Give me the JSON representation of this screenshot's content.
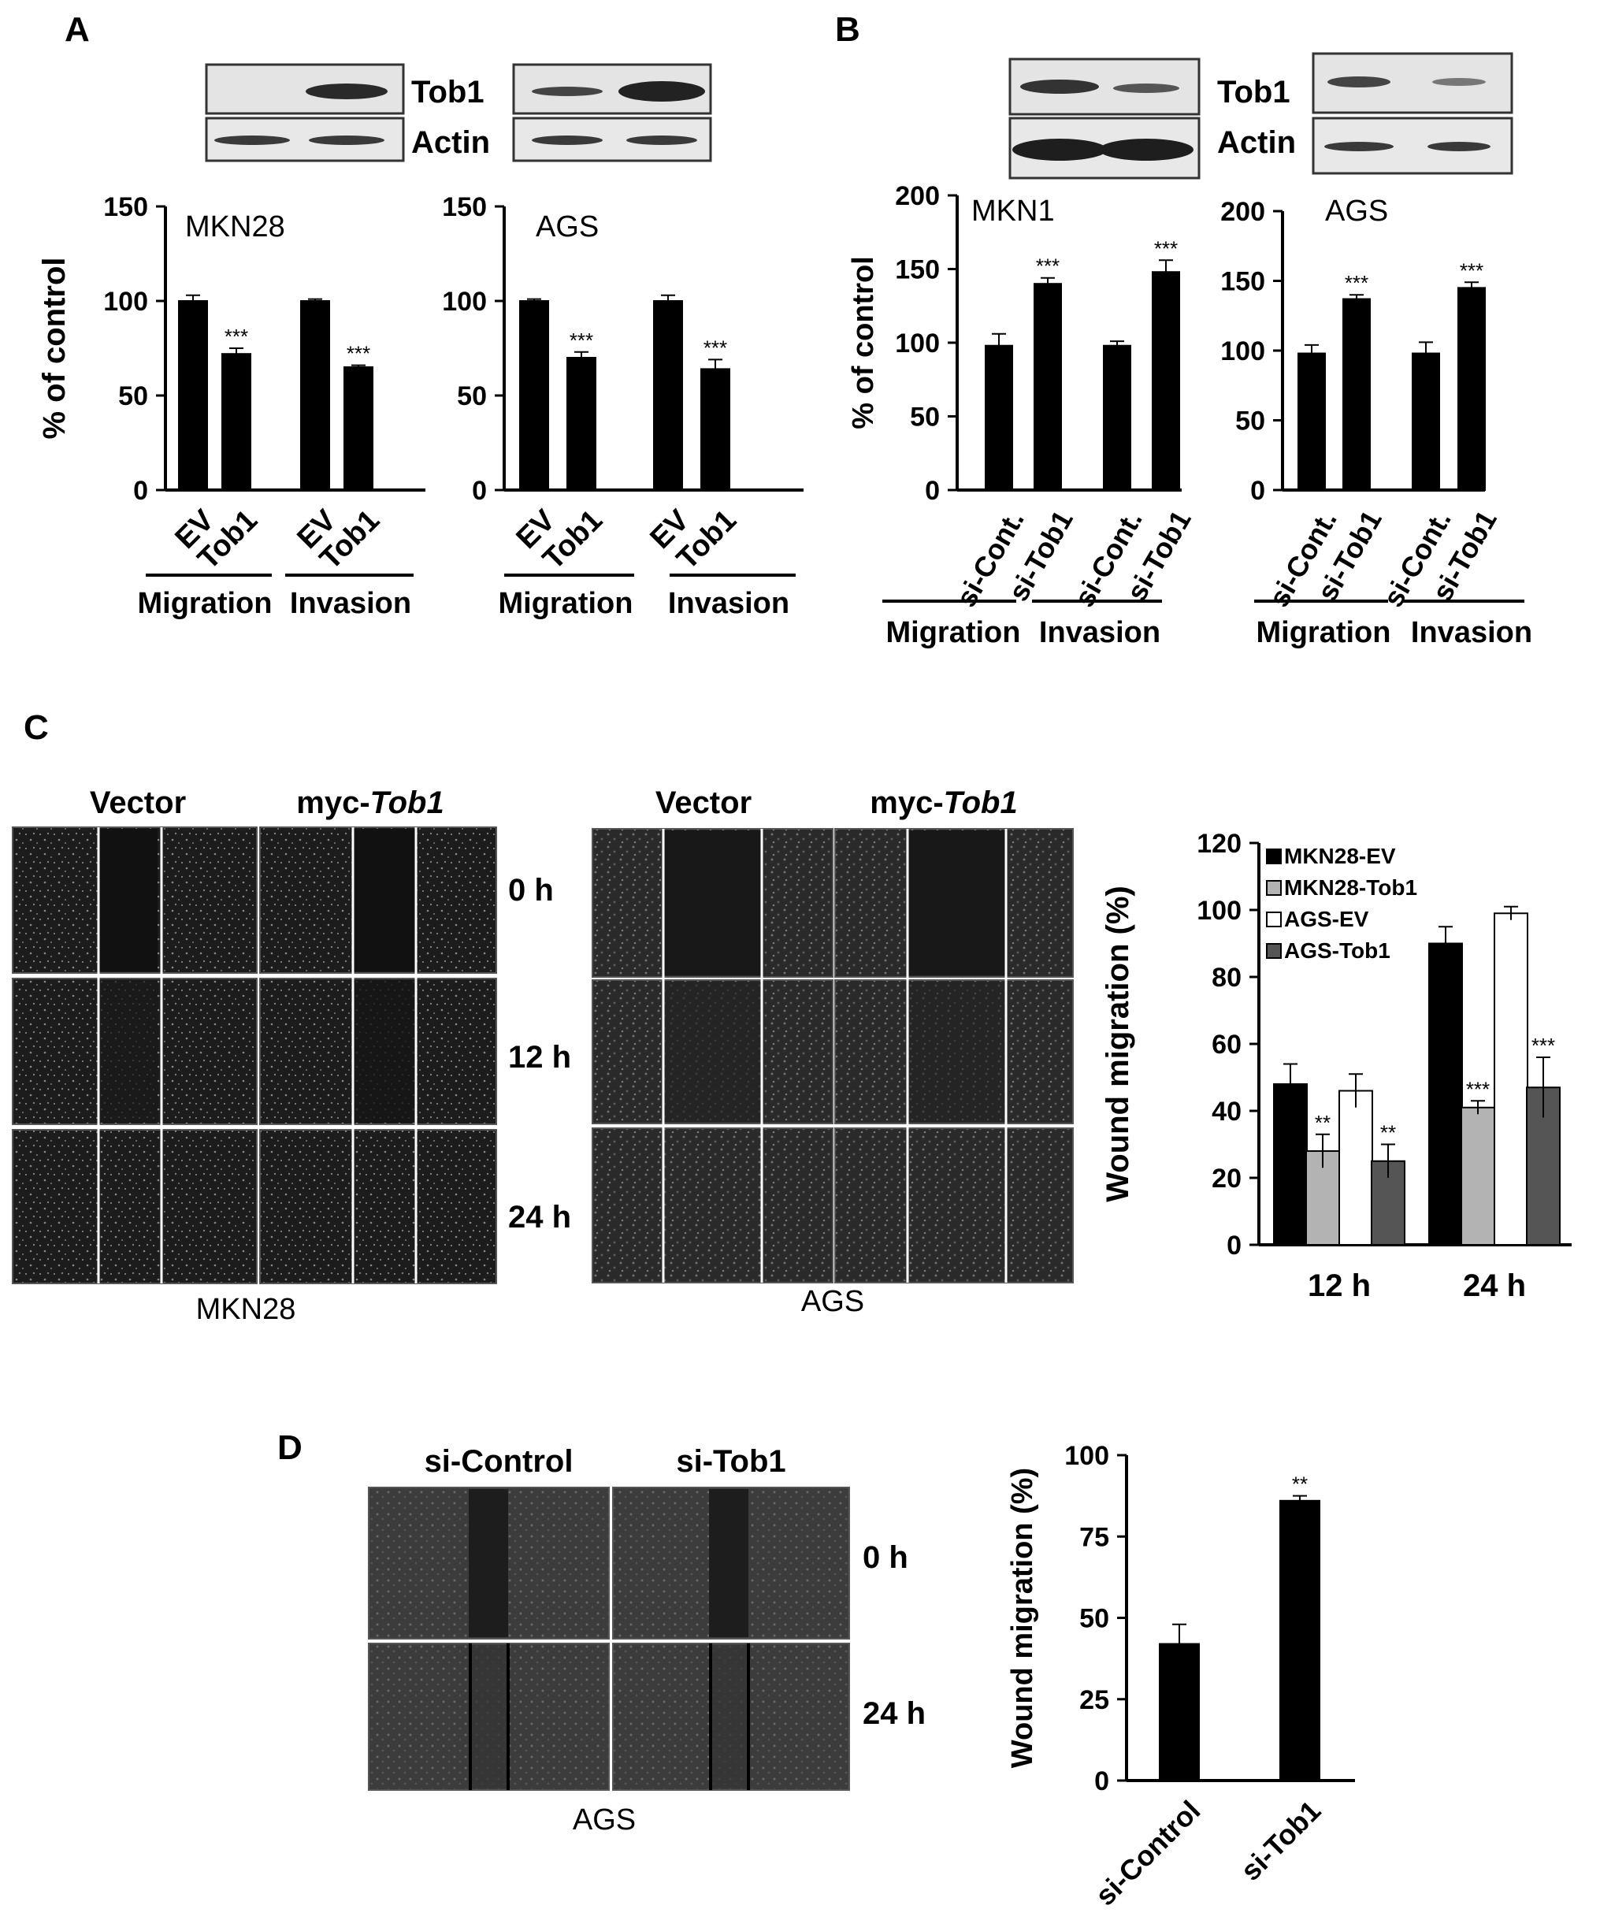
{
  "panel_labels": {
    "A": "A",
    "B": "B",
    "C": "C",
    "D": "D"
  },
  "blots": {
    "A": {
      "row1": "Tob1",
      "row2": "Actin"
    },
    "B": {
      "row1": "Tob1",
      "row2": "Actin"
    }
  },
  "scratch": {
    "C": {
      "left": {
        "col1": "Vector",
        "col2_prefix": "myc-",
        "col2_italic": "Tob1",
        "cell_line": "MKN28"
      },
      "right": {
        "col1": "Vector",
        "col2_prefix": "myc-",
        "col2_italic": "Tob1",
        "cell_line": "AGS"
      },
      "times": [
        "0 h",
        "12 h",
        "24 h"
      ]
    },
    "D": {
      "col1": "si-Control",
      "col2": "si-Tob1",
      "cell_line": "AGS",
      "times": [
        "0 h",
        "24 h"
      ]
    }
  },
  "colors": {
    "black": "#000000",
    "light_gray": "#b3b3b3",
    "white": "#ffffff",
    "dark_gray": "#555555"
  },
  "chart_data": [
    {
      "id": "A-MKN28",
      "type": "bar",
      "title": "MKN28",
      "ylabel": "% of control",
      "ylim": [
        0,
        150
      ],
      "yticks": [
        0,
        50,
        100,
        150
      ],
      "categories": [
        "EV",
        "Tob1",
        "EV",
        "Tob1"
      ],
      "values": [
        100,
        72,
        100,
        65
      ],
      "errors": [
        3,
        3,
        1,
        1
      ],
      "annotations": [
        "",
        "***",
        "",
        "***"
      ],
      "groups": [
        "Migration",
        "Invasion"
      ]
    },
    {
      "id": "A-AGS",
      "type": "bar",
      "title": "AGS",
      "ylabel": "",
      "ylim": [
        0,
        150
      ],
      "yticks": [
        0,
        50,
        100,
        150
      ],
      "categories": [
        "EV",
        "Tob1",
        "EV",
        "Tob1"
      ],
      "values": [
        100,
        70,
        100,
        64
      ],
      "errors": [
        1,
        3,
        3,
        5
      ],
      "annotations": [
        "",
        "***",
        "",
        "***"
      ],
      "groups": [
        "Migration",
        "Invasion"
      ]
    },
    {
      "id": "B-MKN1",
      "type": "bar",
      "title": "MKN1",
      "ylabel": "% of control",
      "ylim": [
        0,
        200
      ],
      "yticks": [
        0,
        50,
        100,
        150,
        200
      ],
      "categories": [
        "si-Cont.",
        "si-Tob1",
        "si-Cont.",
        "si-Tob1"
      ],
      "values": [
        98,
        140,
        98,
        148
      ],
      "errors": [
        8,
        4,
        3,
        8
      ],
      "annotations": [
        "",
        "***",
        "",
        "***"
      ],
      "groups": [
        "Migration",
        "Invasion"
      ]
    },
    {
      "id": "B-AGS",
      "type": "bar",
      "title": "AGS",
      "ylabel": "",
      "ylim": [
        0,
        200
      ],
      "yticks": [
        0,
        50,
        100,
        150,
        200
      ],
      "categories": [
        "si-Cont.",
        "si-Tob1",
        "si-Cont.",
        "si-Tob1"
      ],
      "values": [
        98,
        137,
        98,
        145
      ],
      "errors": [
        6,
        3,
        8,
        4
      ],
      "annotations": [
        "",
        "***",
        "",
        "***"
      ],
      "groups": [
        "Migration",
        "Invasion"
      ]
    },
    {
      "id": "C-wound",
      "type": "bar",
      "ylabel": "Wound migration  (%)",
      "ylim": [
        0,
        120
      ],
      "yticks": [
        0,
        20,
        40,
        60,
        80,
        100,
        120
      ],
      "categories": [
        "12 h",
        "24 h"
      ],
      "legend_position": "top-left",
      "series": [
        {
          "name": "MKN28-EV",
          "color": "#000000",
          "values": [
            48,
            90
          ],
          "errors": [
            6,
            5
          ],
          "annotations": [
            "",
            ""
          ]
        },
        {
          "name": "MKN28-Tob1",
          "color": "#b3b3b3",
          "values": [
            28,
            41
          ],
          "errors": [
            5,
            2
          ],
          "annotations": [
            "**",
            "***"
          ]
        },
        {
          "name": "AGS-EV",
          "color": "#ffffff",
          "values": [
            46,
            99
          ],
          "errors": [
            5,
            2
          ],
          "annotations": [
            "",
            ""
          ]
        },
        {
          "name": "AGS-Tob1",
          "color": "#555555",
          "values": [
            25,
            47
          ],
          "errors": [
            5,
            9
          ],
          "annotations": [
            "**",
            "***"
          ]
        }
      ]
    },
    {
      "id": "D-wound",
      "type": "bar",
      "ylabel": "Wound migration  (%)",
      "ylim": [
        0,
        100
      ],
      "yticks": [
        0,
        25,
        50,
        75,
        100
      ],
      "categories": [
        "si-Control",
        "si-Tob1"
      ],
      "values": [
        42,
        86
      ],
      "errors": [
        6,
        1.5
      ],
      "annotations": [
        "",
        "**"
      ]
    }
  ]
}
